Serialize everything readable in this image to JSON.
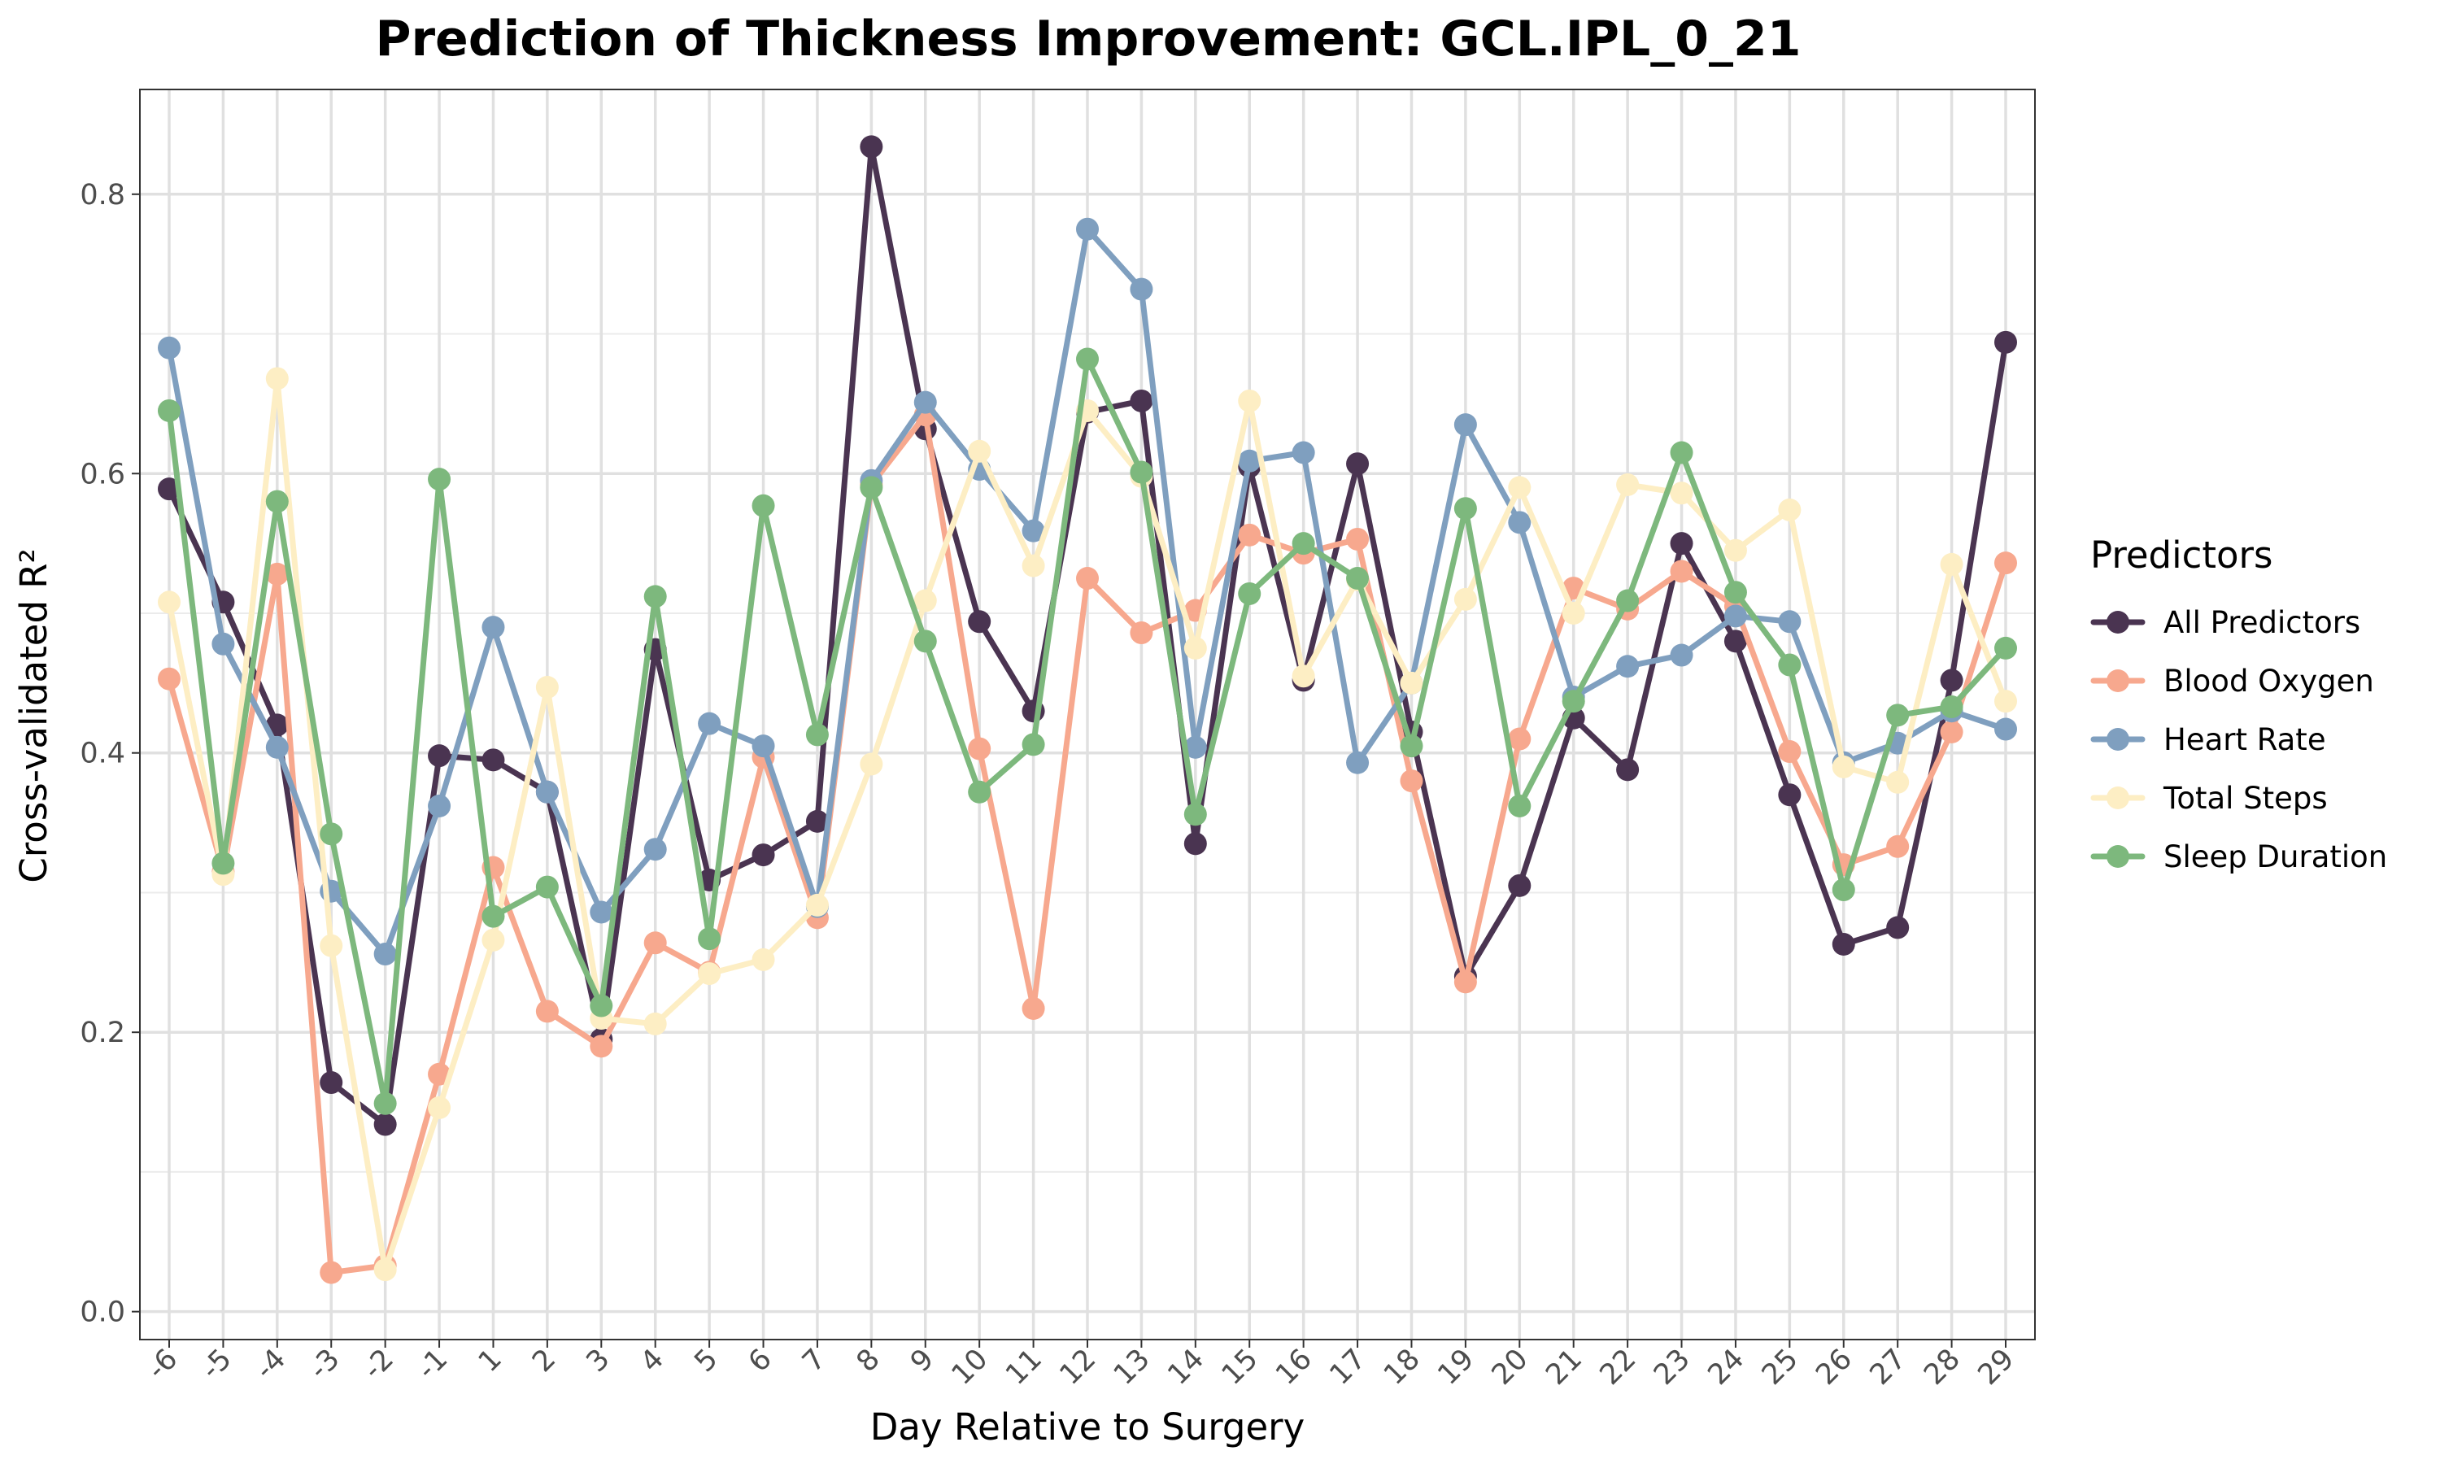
{
  "chart_data": {
    "type": "line",
    "title": "Prediction of Thickness Improvement: GCL.IPL_0_21",
    "xlabel": "Day Relative to Surgery",
    "ylabel": "Cross-validated R²",
    "ylim": [
      -0.02,
      0.875
    ],
    "yticks": [
      0.0,
      0.2,
      0.4,
      0.6,
      0.8
    ],
    "ytick_labels": [
      "0.0",
      "0.2",
      "0.4",
      "0.6",
      "0.8"
    ],
    "grid": true,
    "legend_title": "Predictors",
    "legend_position": "right",
    "categories": [
      "-6",
      "-5",
      "-4",
      "-3",
      "-2",
      "-1",
      "1",
      "2",
      "3",
      "4",
      "5",
      "6",
      "7",
      "8",
      "9",
      "10",
      "11",
      "12",
      "13",
      "14",
      "15",
      "16",
      "17",
      "18",
      "19",
      "20",
      "21",
      "22",
      "23",
      "24",
      "25",
      "26",
      "27",
      "28",
      "29"
    ],
    "series": [
      {
        "name": "All Predictors",
        "color": "#4a3451",
        "values": [
          0.589,
          0.508,
          0.42,
          0.164,
          0.134,
          0.398,
          0.395,
          0.372,
          0.195,
          0.474,
          0.309,
          0.327,
          0.351,
          0.834,
          0.632,
          0.494,
          0.43,
          0.644,
          0.652,
          0.335,
          0.605,
          0.452,
          0.607,
          0.415,
          0.24,
          0.305,
          0.425,
          0.388,
          0.55,
          0.48,
          0.37,
          0.263,
          0.275,
          0.452,
          0.694
        ]
      },
      {
        "name": "Blood Oxygen",
        "color": "#f7a88e",
        "values": [
          0.453,
          0.315,
          0.528,
          0.028,
          0.033,
          0.17,
          0.318,
          0.215,
          0.19,
          0.264,
          0.243,
          0.397,
          0.282,
          0.592,
          0.642,
          0.403,
          0.217,
          0.525,
          0.486,
          0.502,
          0.556,
          0.543,
          0.553,
          0.38,
          0.236,
          0.41,
          0.518,
          0.503,
          0.53,
          0.505,
          0.401,
          0.32,
          0.333,
          0.415,
          0.536
        ]
      },
      {
        "name": "Heart Rate",
        "color": "#7f9fbf",
        "values": [
          0.69,
          0.478,
          0.404,
          0.301,
          0.256,
          0.362,
          0.49,
          0.372,
          0.286,
          0.331,
          0.421,
          0.405,
          0.29,
          0.595,
          0.651,
          0.603,
          0.559,
          0.775,
          0.732,
          0.404,
          0.609,
          0.615,
          0.393,
          0.45,
          0.635,
          0.565,
          0.44,
          0.462,
          0.47,
          0.498,
          0.494,
          0.393,
          0.407,
          0.43,
          0.417
        ]
      },
      {
        "name": "Total Steps",
        "color": "#fdeec4",
        "values": [
          0.508,
          0.313,
          0.668,
          0.262,
          0.03,
          0.146,
          0.266,
          0.447,
          0.21,
          0.206,
          0.242,
          0.252,
          0.291,
          0.392,
          0.509,
          0.616,
          0.534,
          0.645,
          0.598,
          0.475,
          0.652,
          0.455,
          0.524,
          0.45,
          0.51,
          0.59,
          0.5,
          0.592,
          0.586,
          0.545,
          0.574,
          0.39,
          0.379,
          0.535,
          0.437
        ]
      },
      {
        "name": "Sleep Duration",
        "color": "#7db87d",
        "values": [
          0.645,
          0.321,
          0.58,
          0.342,
          0.149,
          0.596,
          0.283,
          0.304,
          0.219,
          0.512,
          0.267,
          0.577,
          0.413,
          0.59,
          0.48,
          0.372,
          0.406,
          0.682,
          0.601,
          0.356,
          0.514,
          0.55,
          0.525,
          0.405,
          0.575,
          0.362,
          0.437,
          0.509,
          0.615,
          0.515,
          0.463,
          0.302,
          0.427,
          0.433,
          0.475
        ]
      }
    ]
  }
}
